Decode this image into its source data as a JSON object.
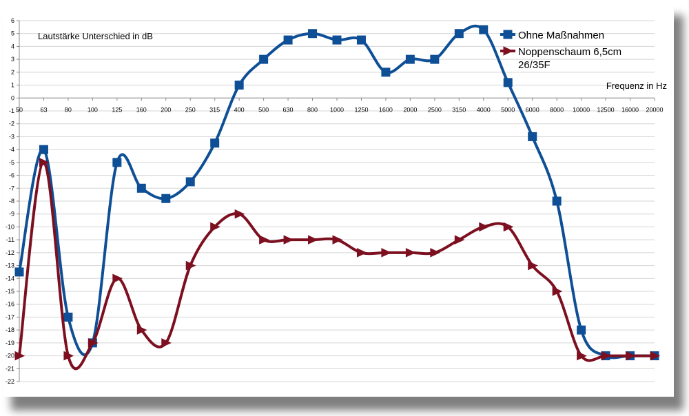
{
  "chart_data": {
    "type": "line",
    "annotation": "Lautstärke Unterschied in dB",
    "xlabel": "Frequenz in Hz",
    "ylabel": "",
    "ylim": [
      -22,
      6
    ],
    "y_ticks": [
      6,
      5,
      4,
      3,
      2,
      1,
      0,
      -1,
      -2,
      -3,
      -4,
      -5,
      -6,
      -7,
      -8,
      -9,
      -10,
      -11,
      -12,
      -13,
      -14,
      -15,
      -16,
      -17,
      -18,
      -19,
      -20,
      -21,
      -22
    ],
    "categories": [
      "50",
      "63",
      "80",
      "100",
      "125",
      "160",
      "200",
      "250",
      "315",
      "400",
      "500",
      "630",
      "800",
      "1000",
      "1250",
      "1600",
      "2000",
      "2500",
      "3150",
      "4000",
      "5000",
      "6000",
      "8000",
      "10000",
      "12500",
      "16000",
      "20000"
    ],
    "grid": "horizontal",
    "legend_position": "top-right",
    "series": [
      {
        "name": "Ohne Maßnahmen",
        "color": "#0f4f96",
        "marker": "square",
        "values": [
          -13.5,
          -4,
          -17,
          -19,
          -5,
          -7,
          -7.8,
          -6.5,
          -3.5,
          1,
          3,
          4.5,
          5,
          4.5,
          4.5,
          2,
          3,
          3,
          5,
          5.3,
          1.2,
          -3,
          -8,
          -18,
          -20,
          -20,
          -20
        ]
      },
      {
        "name": "Noppenschaum 6,5cm 26/35F",
        "color": "#7d1020",
        "marker": "triangle",
        "values": [
          -20,
          -5,
          -20,
          -19,
          -14,
          -18,
          -19,
          -13,
          -10,
          -9,
          -11,
          -11,
          -11,
          -11,
          -12,
          -12,
          -12,
          -12,
          -11,
          -10,
          -10,
          -13,
          -15,
          -20,
          -20,
          -20,
          -20
        ]
      }
    ]
  }
}
